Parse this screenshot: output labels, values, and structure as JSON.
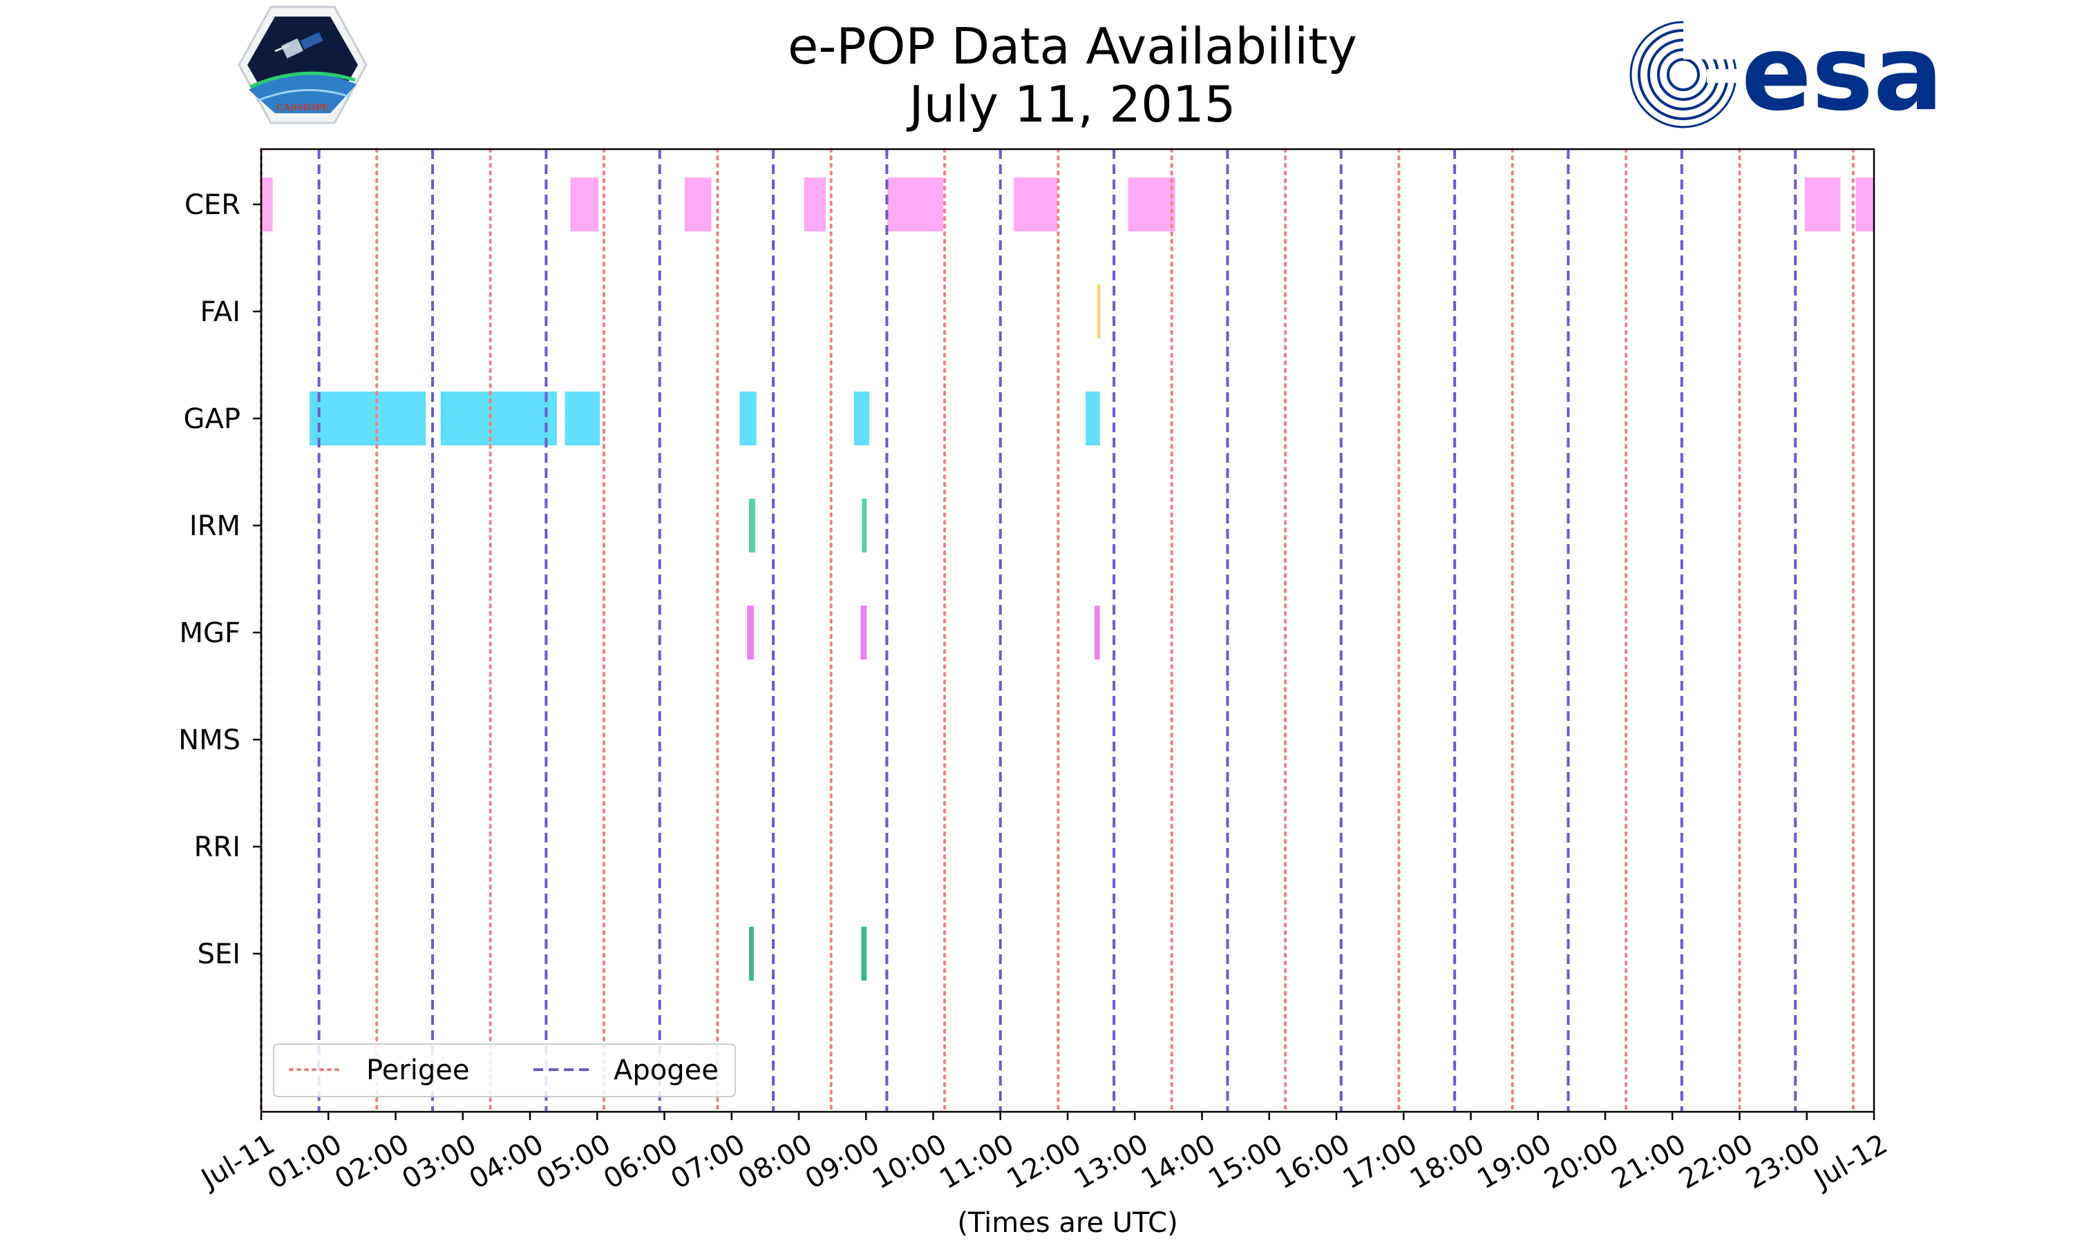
{
  "chart_data": {
    "type": "timeline",
    "title": "e-POP Data Availability",
    "subtitle": "July 11, 2015",
    "xlabel": "(Times are UTC)",
    "x_unit": "hours UTC",
    "xlim": [
      0,
      24
    ],
    "x_ticks": [
      {
        "value": 0,
        "label": "Jul-11"
      },
      {
        "value": 1,
        "label": "01:00"
      },
      {
        "value": 2,
        "label": "02:00"
      },
      {
        "value": 3,
        "label": "03:00"
      },
      {
        "value": 4,
        "label": "04:00"
      },
      {
        "value": 5,
        "label": "05:00"
      },
      {
        "value": 6,
        "label": "06:00"
      },
      {
        "value": 7,
        "label": "07:00"
      },
      {
        "value": 8,
        "label": "08:00"
      },
      {
        "value": 9,
        "label": "09:00"
      },
      {
        "value": 10,
        "label": "10:00"
      },
      {
        "value": 11,
        "label": "11:00"
      },
      {
        "value": 12,
        "label": "12:00"
      },
      {
        "value": 13,
        "label": "13:00"
      },
      {
        "value": 14,
        "label": "14:00"
      },
      {
        "value": 15,
        "label": "15:00"
      },
      {
        "value": 16,
        "label": "16:00"
      },
      {
        "value": 17,
        "label": "17:00"
      },
      {
        "value": 18,
        "label": "18:00"
      },
      {
        "value": 19,
        "label": "19:00"
      },
      {
        "value": 20,
        "label": "20:00"
      },
      {
        "value": 21,
        "label": "21:00"
      },
      {
        "value": 22,
        "label": "22:00"
      },
      {
        "value": 23,
        "label": "23:00"
      },
      {
        "value": 24,
        "label": "Jul-12"
      }
    ],
    "instruments": [
      {
        "name": "CER",
        "color": "#ffaaf5",
        "intervals": [
          [
            0.0,
            0.17
          ],
          [
            4.6,
            5.02
          ],
          [
            6.3,
            6.7
          ],
          [
            8.08,
            8.4
          ],
          [
            9.32,
            10.15
          ],
          [
            11.2,
            11.85
          ],
          [
            12.9,
            13.6
          ],
          [
            22.97,
            23.5
          ],
          [
            23.73,
            24.0
          ]
        ]
      },
      {
        "name": "FAI",
        "color": "#ffd37a",
        "intervals": [
          [
            12.44,
            12.49
          ]
        ]
      },
      {
        "name": "GAP",
        "color": "#62dff8",
        "intervals": [
          [
            0.72,
            2.45
          ],
          [
            2.67,
            4.4
          ],
          [
            4.52,
            5.04
          ],
          [
            7.12,
            7.37
          ],
          [
            8.82,
            9.05
          ],
          [
            12.27,
            12.48
          ]
        ]
      },
      {
        "name": "IRM",
        "color": "#56d1a8",
        "intervals": [
          [
            7.26,
            7.35
          ],
          [
            8.94,
            9.01
          ]
        ]
      },
      {
        "name": "MGF",
        "color": "#ee82ee",
        "intervals": [
          [
            7.23,
            7.33
          ],
          [
            8.92,
            9.01
          ],
          [
            12.4,
            12.48
          ]
        ]
      },
      {
        "name": "NMS",
        "color": "#ee82ee",
        "intervals": []
      },
      {
        "name": "RRI",
        "color": "#ee82ee",
        "intervals": []
      },
      {
        "name": "SEI",
        "color": "#3cb989",
        "intervals": [
          [
            7.26,
            7.33
          ],
          [
            8.93,
            9.01
          ]
        ]
      }
    ],
    "perigee_times": [
      0.0,
      1.72,
      3.41,
      5.1,
      6.79,
      8.48,
      10.17,
      11.86,
      13.55,
      15.24,
      16.93,
      18.62,
      20.31,
      22.0,
      23.69
    ],
    "apogee_times": [
      0.86,
      2.55,
      4.24,
      5.93,
      7.62,
      9.31,
      11.0,
      12.69,
      14.38,
      16.07,
      17.76,
      19.45,
      21.14,
      22.83
    ],
    "perigee_color": "#f08080",
    "apogee_color": "#6a5acd",
    "legend": {
      "location": "lower-left",
      "entries": [
        "Perigee",
        "Apogee"
      ]
    },
    "grid": false
  },
  "logos": {
    "left": {
      "text": "CASSIOPE"
    },
    "right": {
      "text": "esa",
      "color": "#003087"
    }
  }
}
